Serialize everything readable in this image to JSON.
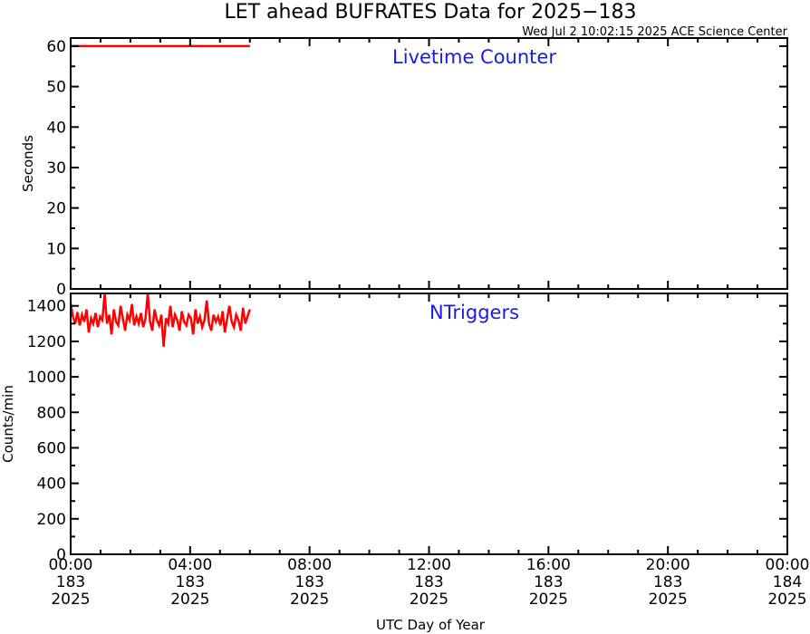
{
  "header": {
    "title": "LET ahead BUFRATES Data for 2025−183",
    "timestamp": "Wed Jul  2 10:02:15 2025 ACE Science Center"
  },
  "colors": {
    "series": "#ff0000",
    "panel_label": "#1a1ae6",
    "frame": "#000000"
  },
  "x_axis": {
    "label": "UTC Day of Year",
    "ticks": [
      {
        "hour": 0,
        "time": "00:00",
        "day": "183",
        "year": "2025"
      },
      {
        "hour": 4,
        "time": "04:00",
        "day": "183",
        "year": "2025"
      },
      {
        "hour": 8,
        "time": "08:00",
        "day": "183",
        "year": "2025"
      },
      {
        "hour": 12,
        "time": "12:00",
        "day": "183",
        "year": "2025"
      },
      {
        "hour": 16,
        "time": "16:00",
        "day": "183",
        "year": "2025"
      },
      {
        "hour": 20,
        "time": "20:00",
        "day": "183",
        "year": "2025"
      },
      {
        "hour": 24,
        "time": "00:00",
        "day": "184",
        "year": "2025"
      }
    ]
  },
  "chart_data": [
    {
      "type": "line",
      "title": "Livetime Counter",
      "ylabel": "Seconds",
      "xlabel": "UTC Day of Year",
      "xlim": [
        0,
        24
      ],
      "ylim": [
        0,
        62
      ],
      "yticks": [
        0,
        10,
        20,
        30,
        40,
        50,
        60
      ],
      "grid": false,
      "series": [
        {
          "x_range": [
            0.0,
            6.0
          ],
          "values": [
            60,
            60,
            60,
            60,
            60,
            60,
            60,
            60,
            60,
            60,
            60,
            60,
            60
          ]
        }
      ]
    },
    {
      "type": "line",
      "title": "NTriggers",
      "ylabel": "Counts/min",
      "xlabel": "UTC Day of Year",
      "xlim": [
        0,
        24
      ],
      "ylim": [
        0,
        1470
      ],
      "yticks": [
        0,
        200,
        400,
        600,
        800,
        1000,
        1200,
        1400
      ],
      "grid": false,
      "series": [
        {
          "x_range": [
            0.0,
            6.0
          ],
          "values": [
            1415,
            1340,
            1300,
            1365,
            1290,
            1350,
            1310,
            1380,
            1250,
            1330,
            1300,
            1360,
            1280,
            1340,
            1320,
            1470,
            1300,
            1350,
            1240,
            1380,
            1310,
            1290,
            1400,
            1330,
            1260,
            1350,
            1320,
            1410,
            1290,
            1340,
            1300,
            1360,
            1280,
            1330,
            1470,
            1310,
            1260,
            1380,
            1320,
            1290,
            1350,
            1170,
            1330,
            1300,
            1400,
            1280,
            1350,
            1320,
            1260,
            1370,
            1310,
            1290,
            1350,
            1330,
            1240,
            1380,
            1300,
            1340,
            1280,
            1320,
            1430,
            1300,
            1260,
            1350,
            1310,
            1340,
            1290,
            1370,
            1250,
            1330,
            1400,
            1310,
            1280,
            1350,
            1320,
            1260,
            1390,
            1300,
            1340,
            1380
          ]
        }
      ]
    }
  ]
}
